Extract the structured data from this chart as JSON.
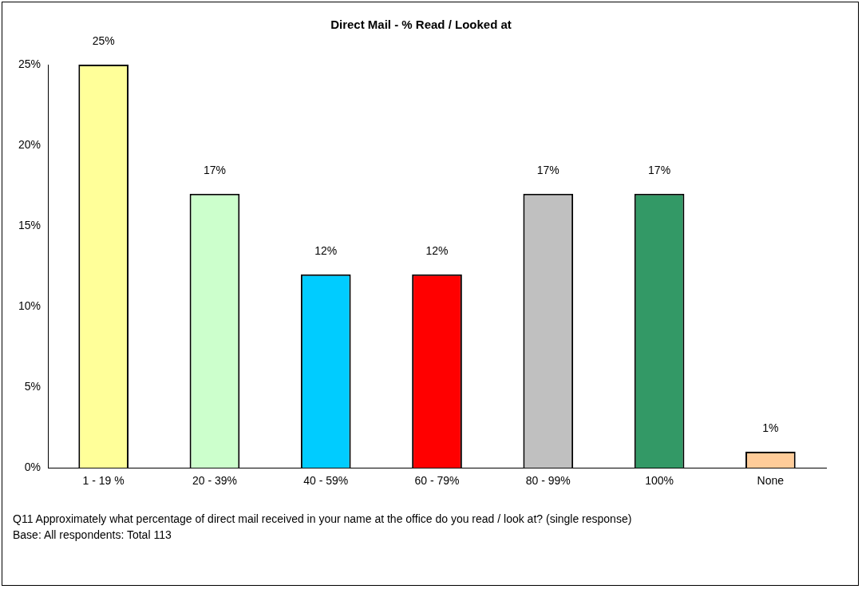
{
  "chart_data": {
    "type": "bar",
    "title": "Direct Mail - % Read / Looked at",
    "categories": [
      "1 - 19 %",
      "20 - 39%",
      "40 - 59%",
      "60 - 79%",
      "80 - 99%",
      "100%",
      "None"
    ],
    "values": [
      25,
      17,
      12,
      12,
      17,
      17,
      1
    ],
    "value_labels": [
      "25%",
      "17%",
      "12%",
      "12%",
      "17%",
      "17%",
      "1%"
    ],
    "colors": [
      "#ffff99",
      "#ccffcc",
      "#00ccff",
      "#ff0000",
      "#c0c0c0",
      "#339966",
      "#ffcc99"
    ],
    "ylim": [
      0,
      25
    ],
    "yticks": [
      {
        "value": 0,
        "label": "0%"
      },
      {
        "value": 5,
        "label": "5%"
      },
      {
        "value": 10,
        "label": "10%"
      },
      {
        "value": 15,
        "label": "15%"
      },
      {
        "value": 20,
        "label": "20%"
      },
      {
        "value": 25,
        "label": "25%"
      }
    ],
    "annotations": [
      "Q11 Approximately what percentage of direct mail received in your name at the office do you read / look at? (single response)",
      "Base: All respondents: Total 113"
    ]
  }
}
